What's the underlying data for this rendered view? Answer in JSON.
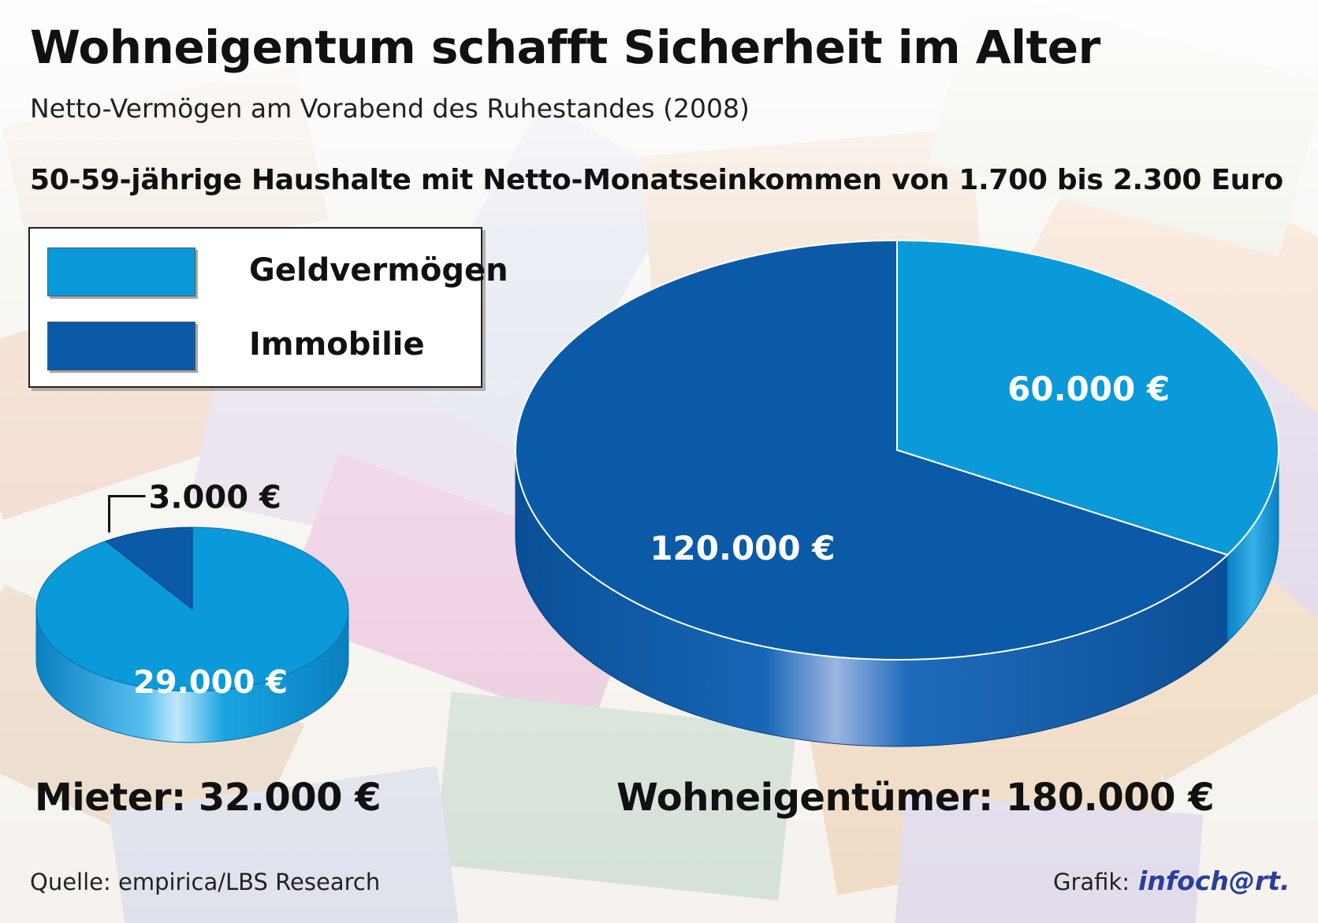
{
  "header": {
    "title": "Wohneigentum schafft Sicherheit im Alter",
    "subtitle": "Netto-Vermögen am Vorabend des Ruhestandes (2008)",
    "group_heading": "50-59-jährige Haushalte mit Netto-Monatseinkommen von 1.700 bis 2.300 Euro"
  },
  "legend": {
    "items": [
      {
        "label": "Geldvermögen",
        "color": "#0a9ad9"
      },
      {
        "label": "Immobilie",
        "color": "#0b5aa8"
      }
    ]
  },
  "chart_data": [
    {
      "type": "pie",
      "title": "Mieter: 32.000 €",
      "categories": [
        "Geldvermögen",
        "Immobilie"
      ],
      "values": [
        29000,
        3000
      ],
      "data_labels": [
        "29.000 €",
        "3.000 €"
      ]
    },
    {
      "type": "pie",
      "title": "Wohneigentümer: 180.000 €",
      "categories": [
        "Geldvermögen",
        "Immobilie"
      ],
      "values": [
        60000,
        120000
      ],
      "data_labels": [
        "60.000 €",
        "120.000 €"
      ]
    }
  ],
  "footer": {
    "source": "Quelle: empirica/LBS Research",
    "credit_label": "Grafik:",
    "credit_logo": "infoch@rt."
  }
}
